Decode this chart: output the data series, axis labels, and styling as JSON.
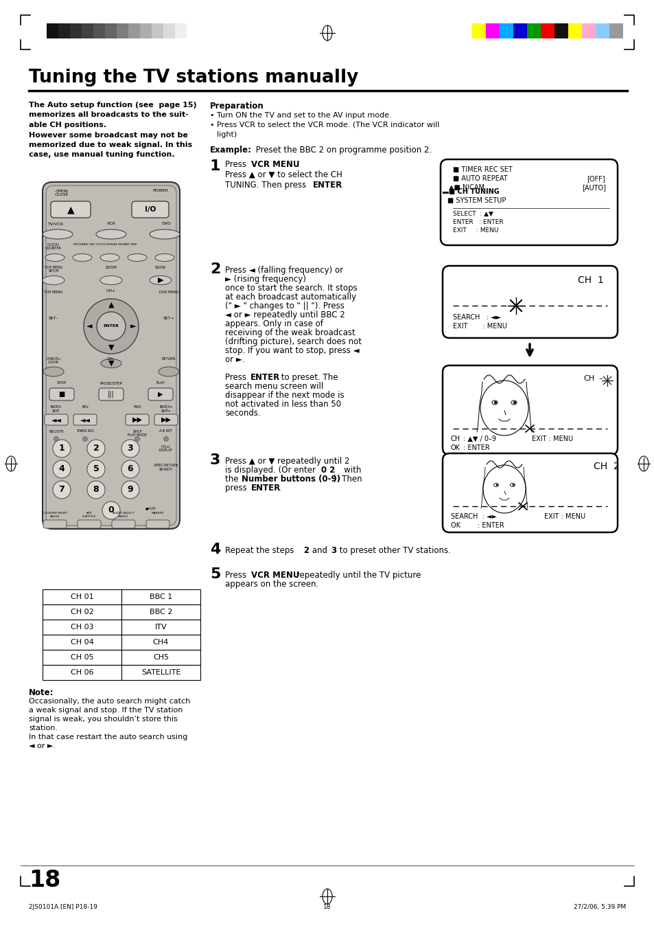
{
  "title": "Tuning the TV stations manually",
  "bg_color": "#ffffff",
  "text_color": "#000000",
  "page_number": "18",
  "footer_left": "2JS0101A [EN] P18-19",
  "footer_center": "18",
  "footer_right": "27/2/06, 5:39 PM",
  "left_col_lines": [
    [
      "bold",
      "The Auto setup function (see  page 15)"
    ],
    [
      "bold",
      "memorizes all broadcasts to the suit-"
    ],
    [
      "bold",
      "able CH positions."
    ],
    [
      "bold",
      "However some broadcast may not be"
    ],
    [
      "bold",
      "memorized due to weak signal. In this"
    ],
    [
      "bold",
      "case, use manual tuning function."
    ]
  ],
  "prep_title": "Preparation",
  "prep_lines": [
    "• Turn ON the TV and set to the AV input mode.",
    "• Press VCR to select the VCR mode. (The VCR indicator will",
    "  light)"
  ],
  "example_line": [
    "bold",
    "Example:",
    "normal",
    " Preset the BBC 2 on programme position 2."
  ],
  "table_rows": [
    [
      "CH 01",
      "BBC 1"
    ],
    [
      "CH 02",
      "BBC 2"
    ],
    [
      "CH 03",
      "ITV"
    ],
    [
      "CH 04",
      "CH4"
    ],
    [
      "CH 05",
      "CH5"
    ],
    [
      "CH 06",
      "SATELLITE"
    ]
  ],
  "note_title": "Note:",
  "note_lines": [
    "Occasionally, the auto search might catch",
    "a weak signal and stop. If the TV station",
    "signal is weak, you shouldn’t store this",
    "station.",
    "In that case restart the auto search using",
    "◄ or ►."
  ],
  "grayscale_colors": [
    "#111111",
    "#222020",
    "#333030",
    "#444040",
    "#555252",
    "#666464",
    "#807c7c",
    "#9a9696",
    "#b0acac",
    "#c8c4c4",
    "#dcdada",
    "#f0eeee"
  ],
  "color_bars": [
    "#ffff00",
    "#ff00ff",
    "#00aaff",
    "#0000cc",
    "#009900",
    "#ee0000",
    "#111111",
    "#ffff00",
    "#ffaacc",
    "#88ccff",
    "#999999"
  ]
}
